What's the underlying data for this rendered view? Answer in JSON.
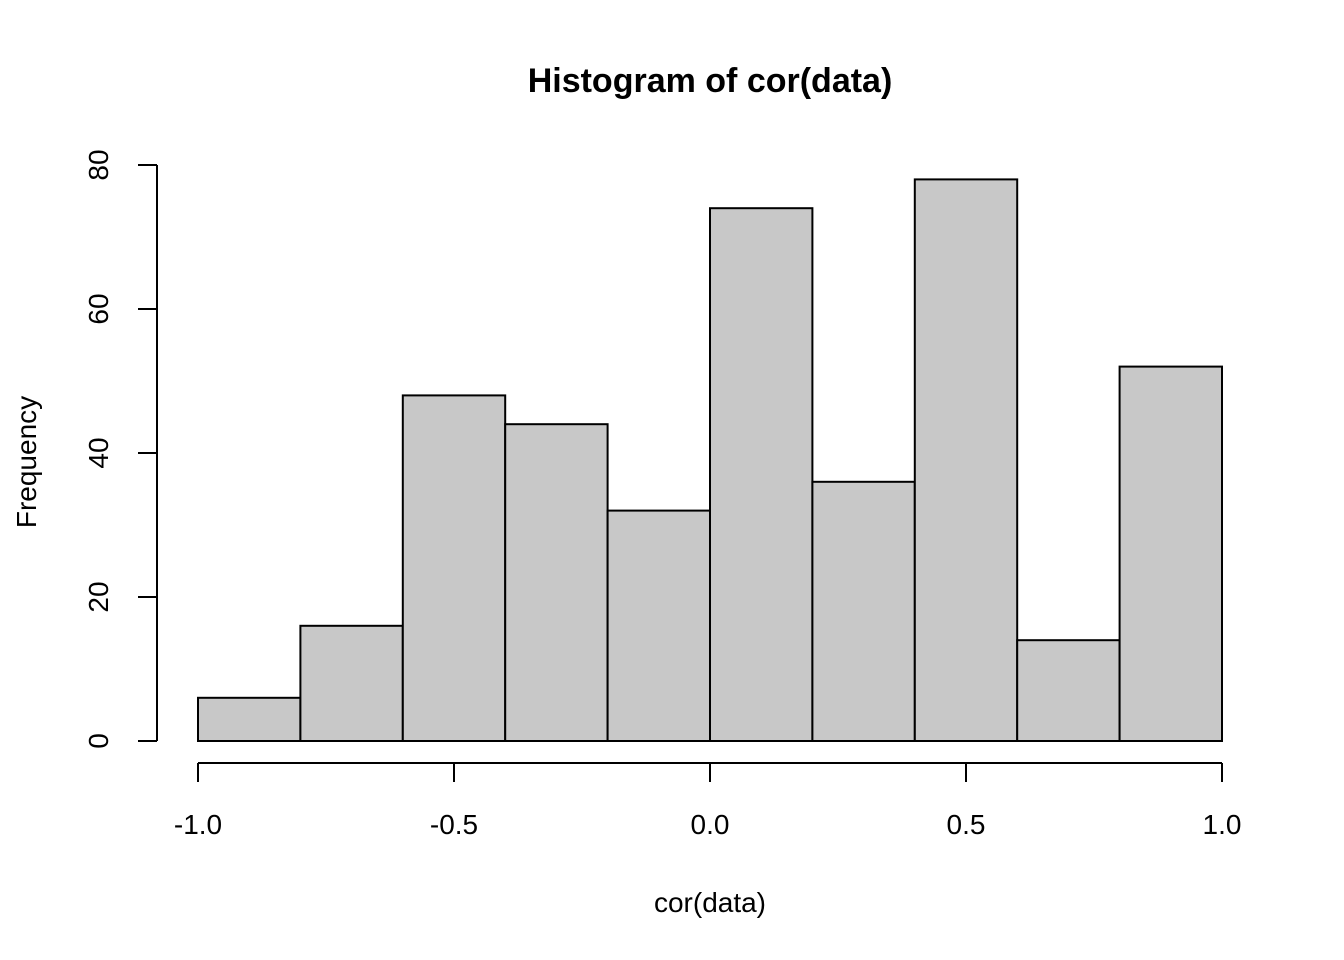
{
  "chart_data": {
    "type": "bar",
    "title": "Histogram of cor(data)",
    "xlabel": "cor(data)",
    "ylabel": "Frequency",
    "bins": [
      [
        -1.0,
        -0.8
      ],
      [
        -0.8,
        -0.6
      ],
      [
        -0.6,
        -0.4
      ],
      [
        -0.4,
        -0.2
      ],
      [
        -0.2,
        0.0
      ],
      [
        0.0,
        0.2
      ],
      [
        0.2,
        0.4
      ],
      [
        0.4,
        0.6
      ],
      [
        0.6,
        0.8
      ],
      [
        0.8,
        1.0
      ]
    ],
    "values": [
      6,
      16,
      48,
      44,
      32,
      74,
      36,
      78,
      14,
      52
    ],
    "xlim": [
      -1.0,
      1.0
    ],
    "ylim": [
      0,
      80
    ],
    "x_ticks": [
      -1.0,
      -0.5,
      0.0,
      0.5,
      1.0
    ],
    "x_tick_labels": [
      "-1.0",
      "-0.5",
      "0.0",
      "0.5",
      "1.0"
    ],
    "y_ticks": [
      0,
      20,
      40,
      60,
      80
    ],
    "y_tick_labels": [
      "0",
      "20",
      "40",
      "60",
      "80"
    ],
    "bar_fill": "#c8c8c8",
    "grid": false
  }
}
